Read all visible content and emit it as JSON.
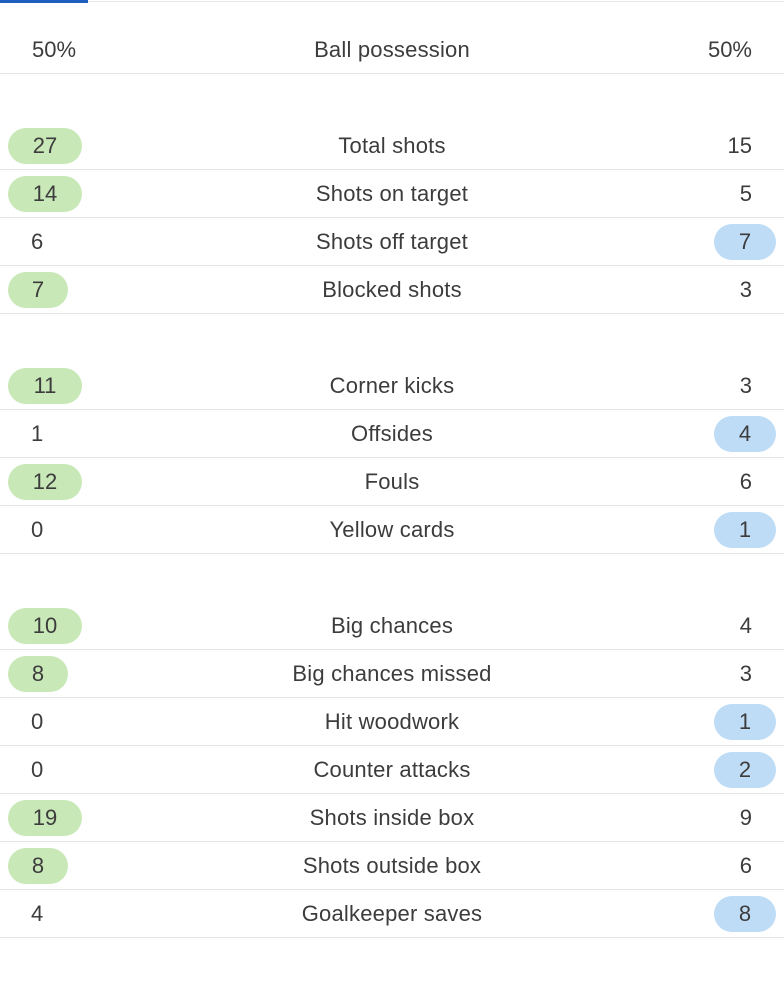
{
  "colors": {
    "home_highlight": "#c9e8b8",
    "away_highlight": "#bfdcf7",
    "tab_indicator": "#1f5fbf"
  },
  "groups": [
    {
      "rows": [
        {
          "label": "Ball possession",
          "home": "50%",
          "away": "50%",
          "leader": "none"
        }
      ]
    },
    {
      "rows": [
        {
          "label": "Total shots",
          "home": "27",
          "away": "15",
          "leader": "home"
        },
        {
          "label": "Shots on target",
          "home": "14",
          "away": "5",
          "leader": "home"
        },
        {
          "label": "Shots off target",
          "home": "6",
          "away": "7",
          "leader": "away"
        },
        {
          "label": "Blocked shots",
          "home": "7",
          "away": "3",
          "leader": "home"
        }
      ]
    },
    {
      "rows": [
        {
          "label": "Corner kicks",
          "home": "11",
          "away": "3",
          "leader": "home"
        },
        {
          "label": "Offsides",
          "home": "1",
          "away": "4",
          "leader": "away"
        },
        {
          "label": "Fouls",
          "home": "12",
          "away": "6",
          "leader": "home"
        },
        {
          "label": "Yellow cards",
          "home": "0",
          "away": "1",
          "leader": "away"
        }
      ]
    },
    {
      "rows": [
        {
          "label": "Big chances",
          "home": "10",
          "away": "4",
          "leader": "home"
        },
        {
          "label": "Big chances missed",
          "home": "8",
          "away": "3",
          "leader": "home"
        },
        {
          "label": "Hit woodwork",
          "home": "0",
          "away": "1",
          "leader": "away"
        },
        {
          "label": "Counter attacks",
          "home": "0",
          "away": "2",
          "leader": "away"
        },
        {
          "label": "Shots inside box",
          "home": "19",
          "away": "9",
          "leader": "home"
        },
        {
          "label": "Shots outside box",
          "home": "8",
          "away": "6",
          "leader": "home"
        },
        {
          "label": "Goalkeeper saves",
          "home": "4",
          "away": "8",
          "leader": "away"
        }
      ]
    }
  ]
}
